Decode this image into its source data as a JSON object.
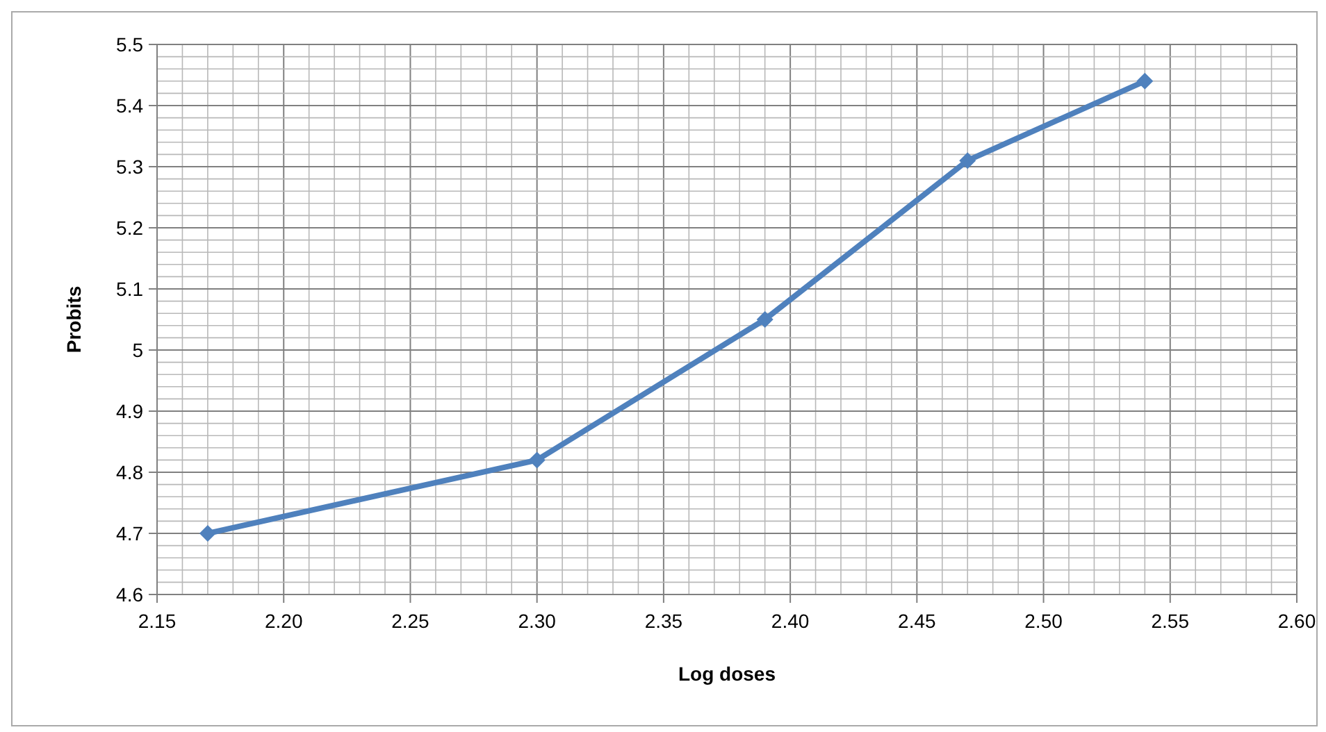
{
  "chart_data": {
    "type": "line",
    "xlabel": "Log doses",
    "ylabel": "Probits",
    "x": [
      2.17,
      2.3,
      2.39,
      2.47,
      2.54
    ],
    "series": [
      {
        "color": "#4f81bd",
        "values": [
          4.7,
          4.82,
          5.05,
          5.31,
          5.44
        ]
      }
    ],
    "xlim": [
      2.15,
      2.6
    ],
    "xticks": [
      {
        "value": 2.15,
        "label": "2.15"
      },
      {
        "value": 2.16,
        "label": null
      },
      {
        "value": 2.17,
        "label": null
      },
      {
        "value": 2.18,
        "label": null
      },
      {
        "value": 2.19,
        "label": null
      },
      {
        "value": 2.2,
        "label": "2.20"
      },
      {
        "value": 2.21,
        "label": null
      },
      {
        "value": 2.22,
        "label": null
      },
      {
        "value": 2.23,
        "label": null
      },
      {
        "value": 2.24,
        "label": null
      },
      {
        "value": 2.25,
        "label": "2.25"
      },
      {
        "value": 2.26,
        "label": null
      },
      {
        "value": 2.27,
        "label": null
      },
      {
        "value": 2.28,
        "label": null
      },
      {
        "value": 2.29,
        "label": null
      },
      {
        "value": 2.3,
        "label": "2.30"
      },
      {
        "value": 2.31,
        "label": null
      },
      {
        "value": 2.32,
        "label": null
      },
      {
        "value": 2.33,
        "label": null
      },
      {
        "value": 2.34,
        "label": null
      },
      {
        "value": 2.35,
        "label": "2.35"
      },
      {
        "value": 2.36,
        "label": null
      },
      {
        "value": 2.37,
        "label": null
      },
      {
        "value": 2.38,
        "label": null
      },
      {
        "value": 2.39,
        "label": null
      },
      {
        "value": 2.4,
        "label": "2.40"
      },
      {
        "value": 2.41,
        "label": null
      },
      {
        "value": 2.42,
        "label": null
      },
      {
        "value": 2.43,
        "label": null
      },
      {
        "value": 2.44,
        "label": null
      },
      {
        "value": 2.45,
        "label": "2.45"
      },
      {
        "value": 2.46,
        "label": null
      },
      {
        "value": 2.47,
        "label": null
      },
      {
        "value": 2.48,
        "label": null
      },
      {
        "value": 2.49,
        "label": null
      },
      {
        "value": 2.5,
        "label": "2.50"
      },
      {
        "value": 2.51,
        "label": null
      },
      {
        "value": 2.52,
        "label": null
      },
      {
        "value": 2.53,
        "label": null
      },
      {
        "value": 2.54,
        "label": null
      },
      {
        "value": 2.55,
        "label": "2.55"
      },
      {
        "value": 2.56,
        "label": null
      },
      {
        "value": 2.57,
        "label": null
      },
      {
        "value": 2.58,
        "label": null
      },
      {
        "value": 2.59,
        "label": null
      },
      {
        "value": 2.6,
        "label": "2.60"
      }
    ],
    "ylim": [
      4.6,
      5.5
    ],
    "yticks": [
      4.6,
      {
        "value": 4.62,
        "label": null
      },
      {
        "value": 4.64,
        "label": null
      },
      {
        "value": 4.66,
        "label": null
      },
      {
        "value": 4.68,
        "label": null
      },
      4.7,
      {
        "value": 4.72,
        "label": null
      },
      {
        "value": 4.74,
        "label": null
      },
      {
        "value": 4.76,
        "label": null
      },
      {
        "value": 4.78,
        "label": null
      },
      4.8,
      {
        "value": 4.82,
        "label": null
      },
      {
        "value": 4.84,
        "label": null
      },
      {
        "value": 4.86,
        "label": null
      },
      {
        "value": 4.88,
        "label": null
      },
      4.9,
      {
        "value": 4.92,
        "label": null
      },
      {
        "value": 4.94,
        "label": null
      },
      {
        "value": 4.96,
        "label": null
      },
      {
        "value": 4.98,
        "label": null
      },
      5,
      {
        "value": 5.02,
        "label": null
      },
      {
        "value": 5.04,
        "label": null
      },
      {
        "value": 5.06,
        "label": null
      },
      {
        "value": 5.08,
        "label": null
      },
      5.1,
      {
        "value": 5.12,
        "label": null
      },
      {
        "value": 5.14,
        "label": null
      },
      {
        "value": 5.16,
        "label": null
      },
      {
        "value": 5.18,
        "label": null
      },
      5.2,
      {
        "value": 5.22,
        "label": null
      },
      {
        "value": 5.24,
        "label": null
      },
      {
        "value": 5.26,
        "label": null
      },
      {
        "value": 5.28,
        "label": null
      },
      5.3,
      {
        "value": 5.32,
        "label": null
      },
      {
        "value": 5.34,
        "label": null
      },
      {
        "value": 5.36,
        "label": null
      },
      {
        "value": 5.38,
        "label": null
      },
      5.4,
      {
        "value": 5.42,
        "label": null
      },
      {
        "value": 5.44,
        "label": null
      },
      {
        "value": 5.46,
        "label": null
      },
      {
        "value": 5.48,
        "label": null
      },
      5.5
    ],
    "grid": true,
    "marker": "diamond",
    "line_style": "solid"
  }
}
